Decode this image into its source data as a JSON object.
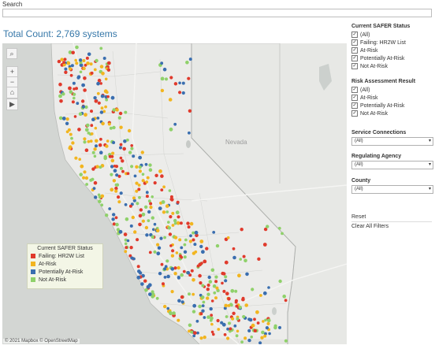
{
  "search": {
    "label": "Search",
    "value": ""
  },
  "total_count": "Total Count: 2,769 systems",
  "map": {
    "state_label": "Nevada",
    "attribution": "© 2021 Mapbox  © OpenStreetMap",
    "colors": {
      "failing": "#e03a2c",
      "at_risk": "#f2b51f",
      "potentially": "#3a6eaf",
      "not": "#8fd16a"
    }
  },
  "legend": {
    "title": "Current SAFER Status",
    "items": [
      {
        "label": "Failing: HR2W List",
        "color": "#e03a2c"
      },
      {
        "label": "At-Risk",
        "color": "#f2b51f"
      },
      {
        "label": "Potentially At-Risk",
        "color": "#3a6eaf"
      },
      {
        "label": "Not At-Risk",
        "color": "#8fd16a"
      }
    ]
  },
  "filters": {
    "safer_status": {
      "title": "Current SAFER Status",
      "options": [
        "(All)",
        "Failing: HR2W List",
        "At-Risk",
        "Potentially At-Risk",
        "Not At-Risk"
      ]
    },
    "risk_assessment": {
      "title": "Risk Assessment Result",
      "options": [
        "(All)",
        "At-Risk",
        "Potentially At-Risk",
        "Not At-Risk"
      ]
    },
    "service_connections": {
      "title": "Service Connections",
      "value": "(All)"
    },
    "regulating_agency": {
      "title": "Regulating Agency",
      "value": "(All)"
    },
    "county": {
      "title": "County",
      "value": "(All)"
    }
  },
  "reset": {
    "title": "Reset",
    "button": "Clear All Filters"
  }
}
